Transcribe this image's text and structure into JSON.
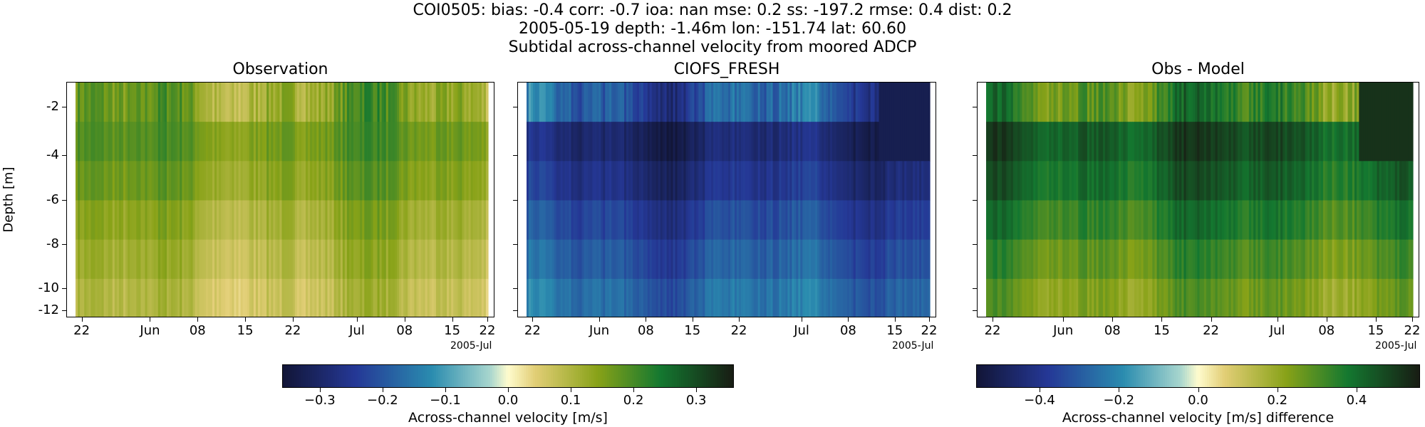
{
  "header": {
    "line1": "COI0505: bias: -0.4  corr: -0.7  ioa: nan  mse: 0.2  ss: -197.2  rmse: 0.4  dist: 0.2",
    "line2": "2005-05-19 depth: -1.46m lon: -151.74 lat: 60.60",
    "line3": "Subtidal across-channel velocity from moored ADCP"
  },
  "chart_data": [
    {
      "type": "heatmap",
      "title": "Observation",
      "ylabel": "Depth [m]",
      "yticks": [
        "-2",
        "-4",
        "-6",
        "-8",
        "-10",
        "-12"
      ],
      "xticks": [
        "22",
        "Jun",
        "08",
        "15",
        "22",
        "Jul",
        "08",
        "15",
        "22"
      ],
      "x_offset_label": "2005-Jul",
      "depth_bins": [
        -1.5,
        -3.5,
        -5.5,
        -7.5,
        -9.5,
        -11.5
      ],
      "clim": [
        -0.36,
        0.36
      ],
      "row_means": [
        0.14,
        0.17,
        0.15,
        0.12,
        0.1,
        0.08
      ],
      "colormap": "delta"
    },
    {
      "type": "heatmap",
      "title": "CIOFS_FRESH",
      "yticks": [
        "-2",
        "-4",
        "-6",
        "-8",
        "-10",
        "-12"
      ],
      "xticks": [
        "22",
        "Jun",
        "08",
        "15",
        "22",
        "Jul",
        "08",
        "15",
        "22"
      ],
      "x_offset_label": "2005-Jul",
      "depth_bins": [
        -1.5,
        -3.5,
        -5.5,
        -7.5,
        -9.5,
        -11.5
      ],
      "clim": [
        -0.36,
        0.36
      ],
      "row_means": [
        -0.2,
        -0.3,
        -0.27,
        -0.23,
        -0.2,
        -0.17
      ],
      "colormap": "delta"
    },
    {
      "type": "heatmap",
      "title": "Obs - Model",
      "yticks": [
        "-2",
        "-4",
        "-6",
        "-8",
        "-10",
        "-12"
      ],
      "xticks": [
        "22",
        "Jun",
        "08",
        "15",
        "22",
        "Jul",
        "08",
        "15",
        "22"
      ],
      "x_offset_label": "2005-Jul",
      "depth_bins": [
        -1.5,
        -3.5,
        -5.5,
        -7.5,
        -9.5,
        -11.5
      ],
      "clim": [
        -0.56,
        0.56
      ],
      "row_means": [
        0.32,
        0.46,
        0.42,
        0.36,
        0.3,
        0.25
      ],
      "colormap": "delta"
    }
  ],
  "colorbars": [
    {
      "label": "Across-channel velocity [m/s]",
      "range": [
        -0.36,
        0.36
      ],
      "ticks": [
        -0.3,
        -0.2,
        -0.1,
        0.0,
        0.1,
        0.2,
        0.3
      ],
      "tick_labels": [
        "−0.3",
        "−0.2",
        "−0.1",
        "0.0",
        "0.1",
        "0.2",
        "0.3"
      ]
    },
    {
      "label": "Across-channel velocity [m/s] difference",
      "range": [
        -0.56,
        0.56
      ],
      "ticks": [
        -0.4,
        -0.2,
        0.0,
        0.2,
        0.4
      ],
      "tick_labels": [
        "−0.4",
        "−0.2",
        "0.0",
        "0.2",
        "0.4"
      ]
    }
  ]
}
